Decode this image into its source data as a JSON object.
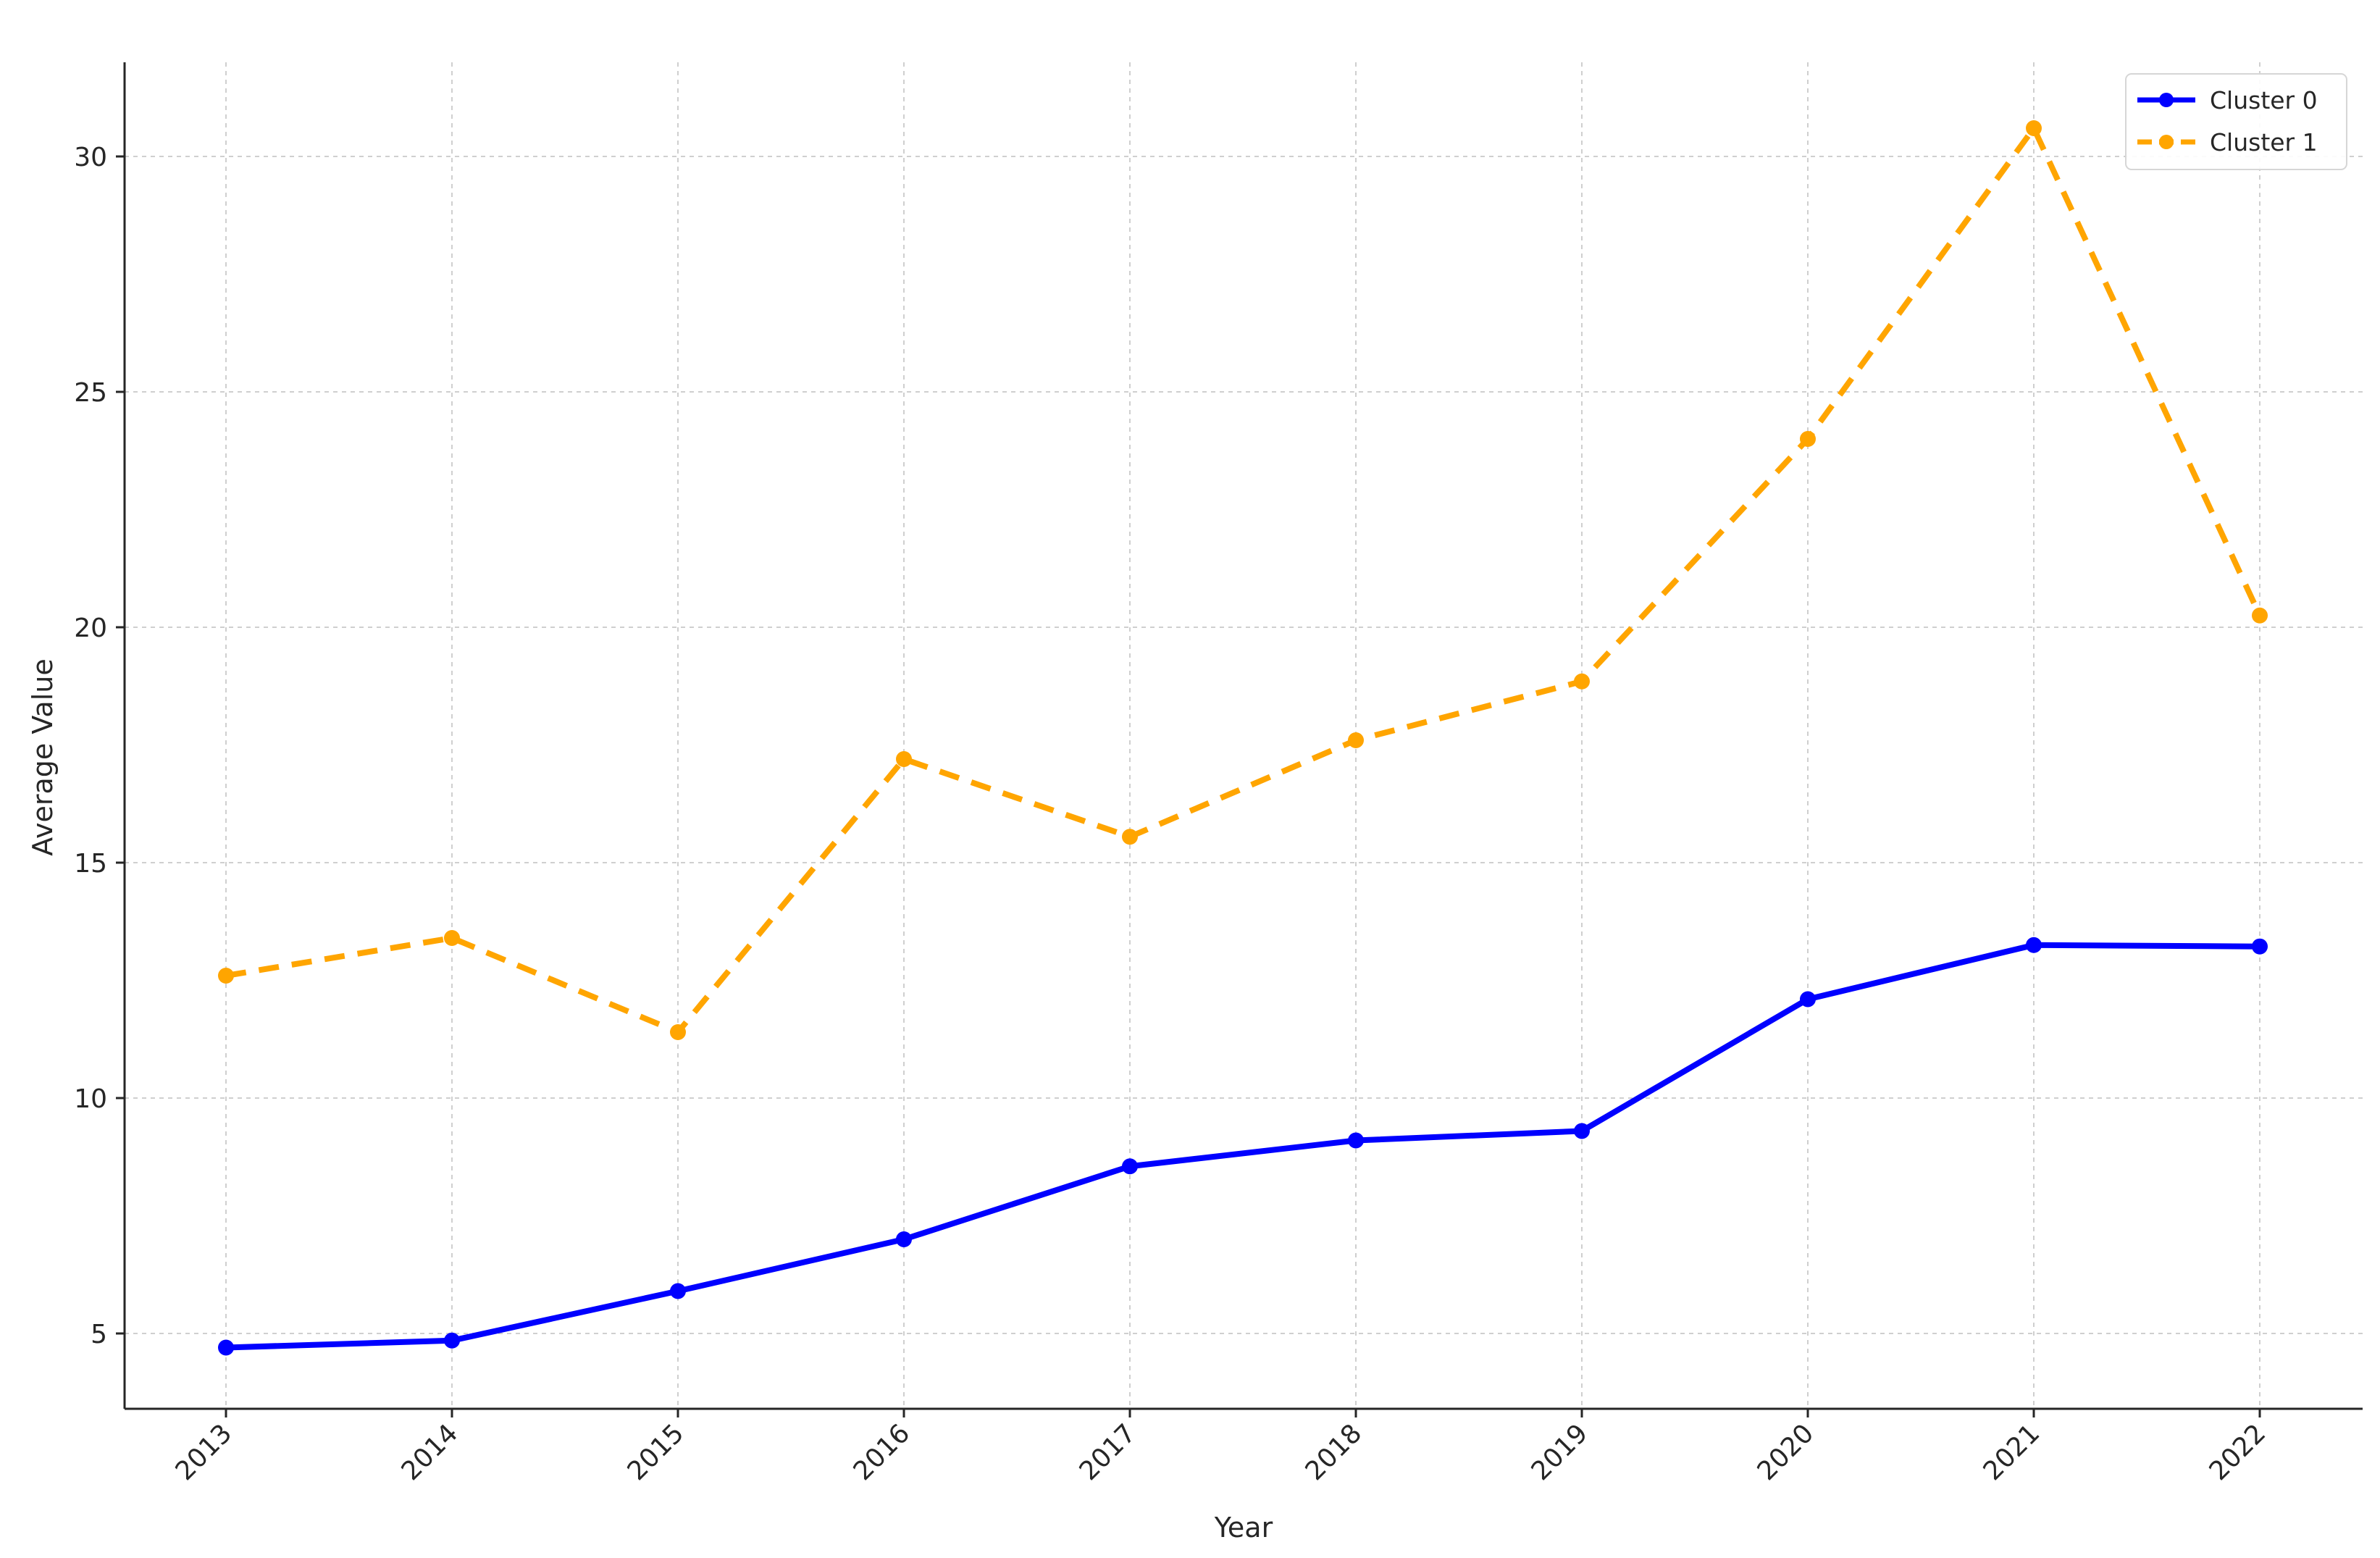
{
  "chart_data": {
    "type": "line",
    "title": "",
    "xlabel": "Year",
    "ylabel": "Average Value",
    "categories": [
      "2013",
      "2014",
      "2015",
      "2016",
      "2017",
      "2018",
      "2019",
      "2020",
      "2021",
      "2022"
    ],
    "yticks": [
      5,
      10,
      15,
      20,
      25,
      30
    ],
    "ylim": [
      3.4,
      32.0
    ],
    "grid": true,
    "legend_position": "top-right",
    "series": [
      {
        "name": "Cluster 0",
        "color": "#0000ff",
        "line_style": "solid",
        "marker": "circle",
        "values": [
          4.7,
          4.85,
          5.9,
          7.0,
          8.55,
          9.1,
          9.3,
          12.1,
          13.25,
          13.22
        ]
      },
      {
        "name": "Cluster 1",
        "color": "#ffa500",
        "line_style": "dashed",
        "marker": "circle",
        "values": [
          12.6,
          13.4,
          11.4,
          17.2,
          15.55,
          17.6,
          18.85,
          24.0,
          30.6,
          20.25
        ]
      }
    ]
  }
}
